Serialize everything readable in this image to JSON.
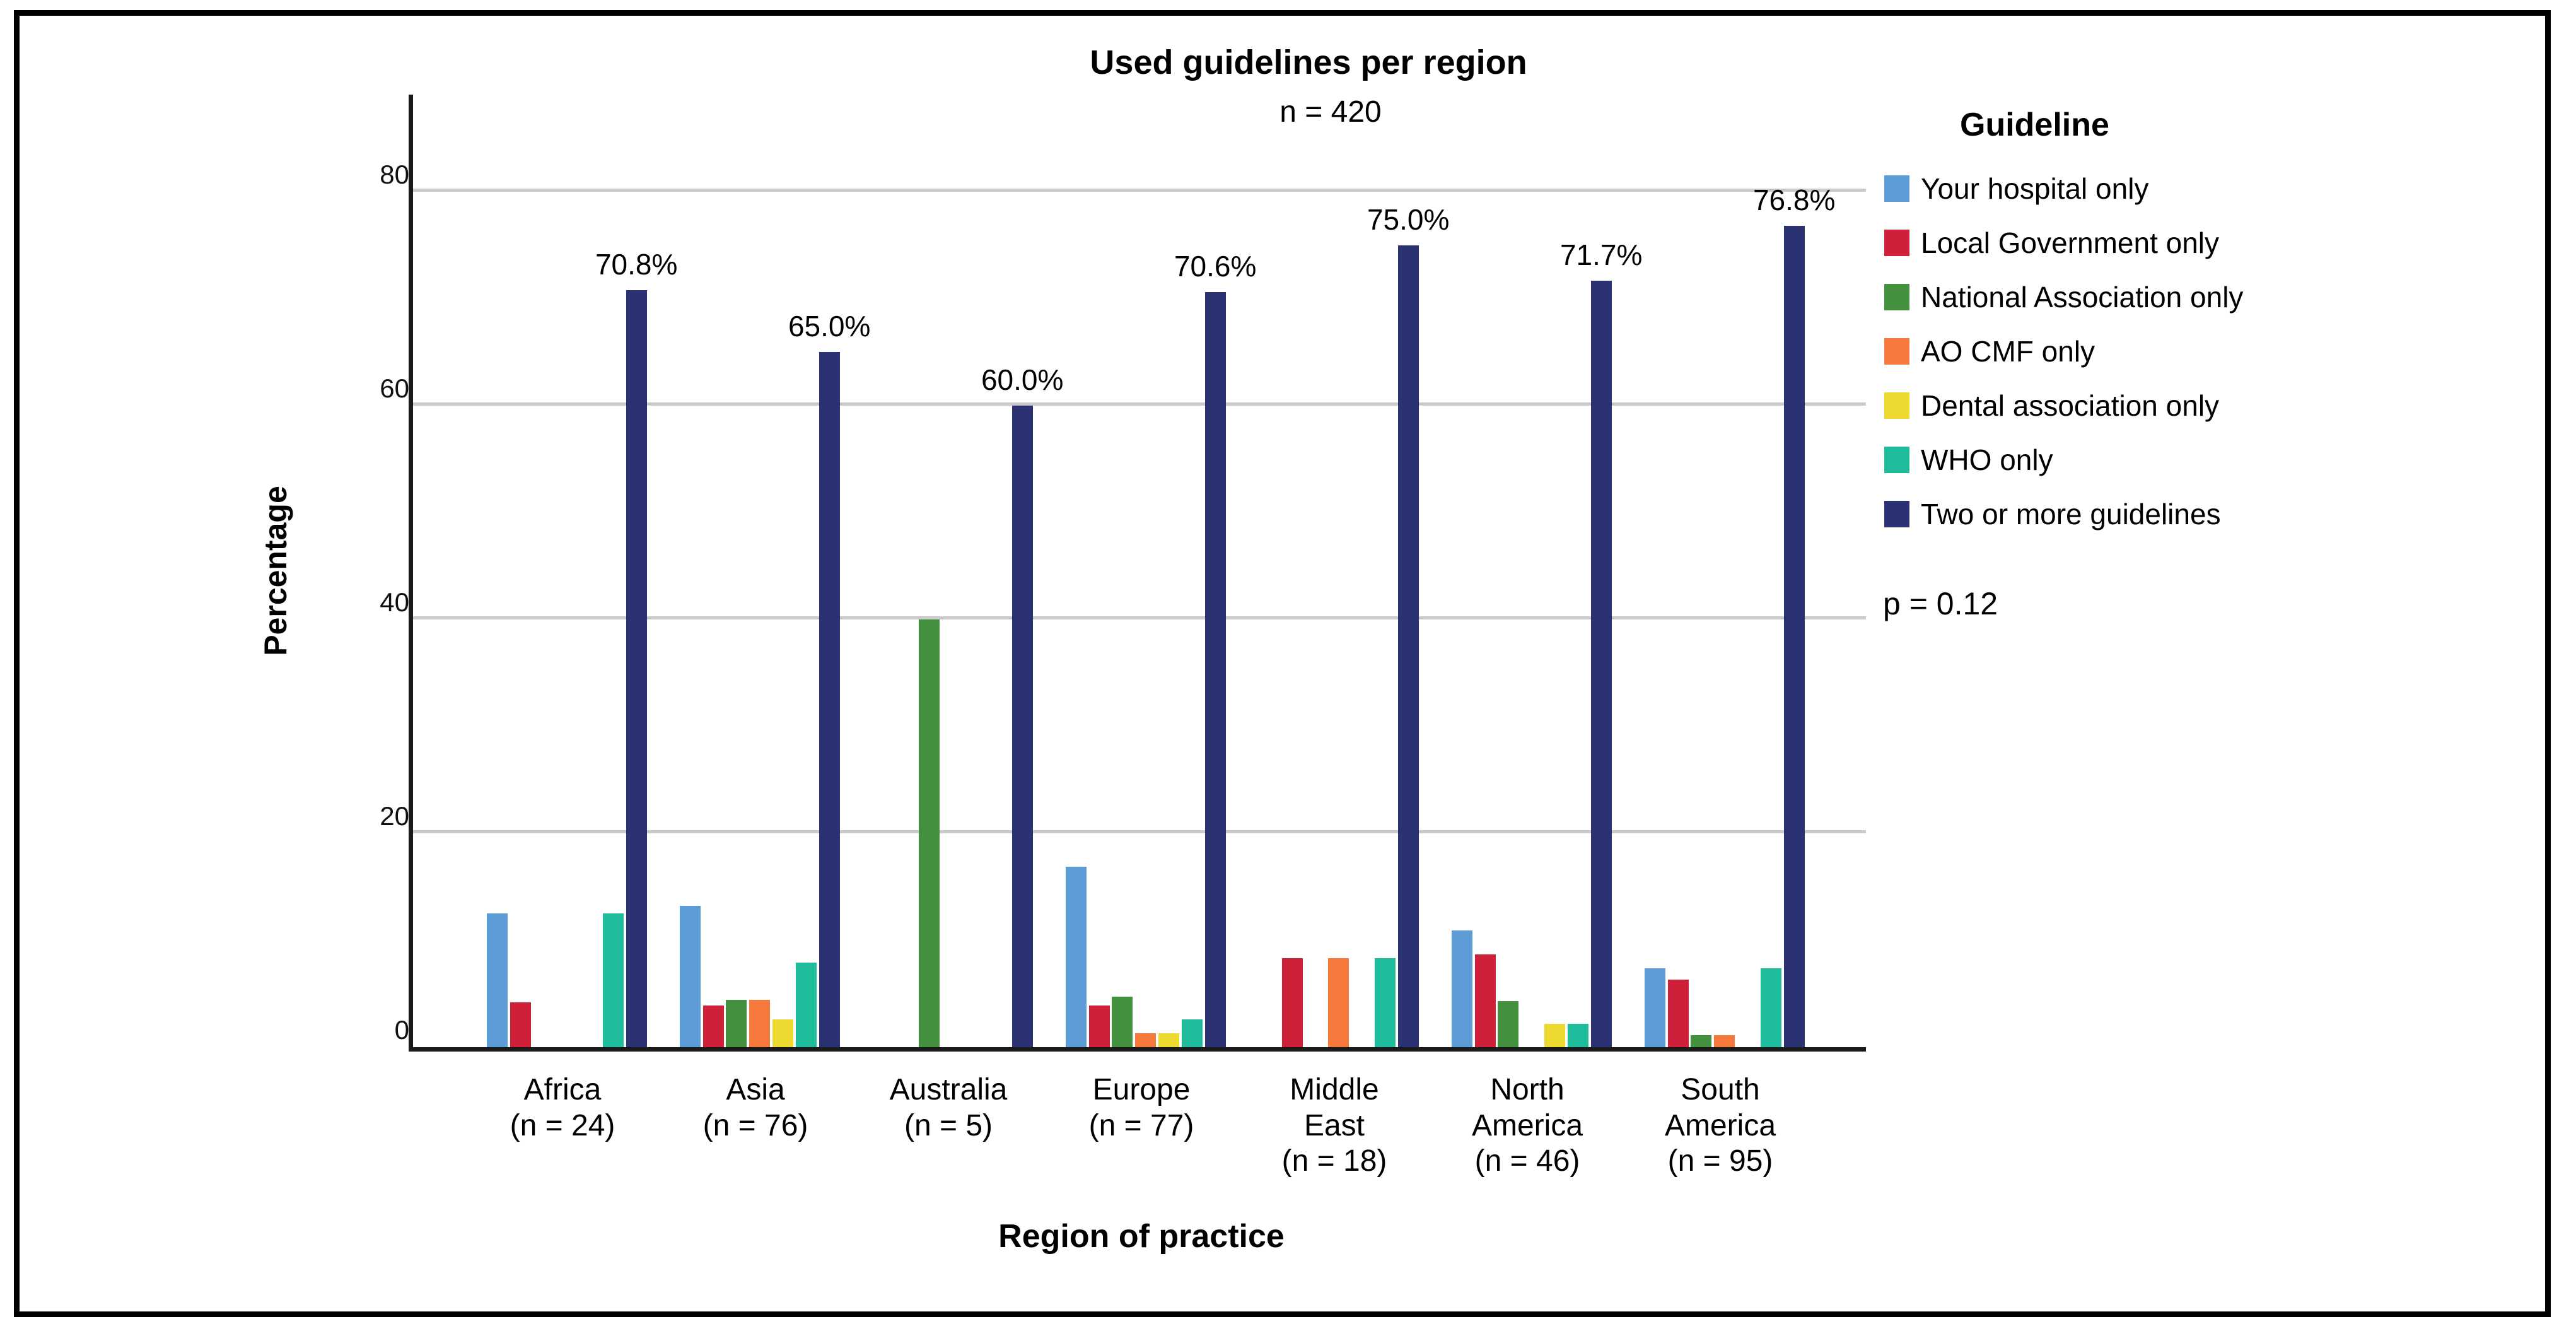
{
  "title": "Used guidelines per region",
  "subtitle": "n = 420",
  "p_value": "p = 0.12",
  "legend": {
    "title": "Guideline",
    "items": [
      {
        "label": "Your hospital only",
        "color": "#5B9CD6"
      },
      {
        "label": "Local Government only",
        "color": "#CE2139"
      },
      {
        "label": "National Association only",
        "color": "#43913F"
      },
      {
        "label": "AO CMF only",
        "color": "#F4793B"
      },
      {
        "label": "Dental association only",
        "color": "#EDD92F"
      },
      {
        "label": "WHO only",
        "color": "#1FBC9C"
      },
      {
        "label": "Two or more guidelines",
        "color": "#2B3272"
      }
    ]
  },
  "axes": {
    "y_label": "Percentage",
    "x_label": "Region of practice",
    "y_ticks": [
      0,
      20,
      40,
      60,
      80
    ],
    "gridlines_at": [
      20,
      40,
      60,
      80
    ]
  },
  "chart_data": {
    "type": "bar",
    "title": "Used guidelines per region",
    "subtitle": "n = 420",
    "xlabel": "Region of practice",
    "ylabel": "Percentage",
    "ylim": [
      0,
      89
    ],
    "grid": true,
    "legend_position": "right",
    "categories": [
      "Africa",
      "Asia",
      "Australia",
      "Europe",
      "Middle East",
      "North America",
      "South America"
    ],
    "category_n": [
      24,
      76,
      5,
      77,
      18,
      46,
      95
    ],
    "category_display_lines": [
      "Africa\n(n = 24)",
      "Asia\n(n = 76)",
      "Australia\n(n = 5)",
      "Europe\n(n = 77)",
      "Middle\nEast\n(n = 18)",
      "North\nAmerica\n(n = 46)",
      "South\nAmerica\n(n = 95)"
    ],
    "series": [
      {
        "name": "Your hospital only",
        "color": "#5B9CD6",
        "values": [
          12.5,
          13.2,
          0,
          16.9,
          0,
          10.9,
          7.4
        ]
      },
      {
        "name": "Local Government only",
        "color": "#CE2139",
        "values": [
          4.2,
          3.9,
          0,
          3.9,
          8.3,
          8.7,
          6.3
        ]
      },
      {
        "name": "National Association only",
        "color": "#43913F",
        "values": [
          0,
          4.4,
          40.0,
          4.7,
          0,
          4.3,
          1.1
        ]
      },
      {
        "name": "AO CMF only",
        "color": "#F4793B",
        "values": [
          0,
          4.4,
          0,
          1.3,
          8.3,
          0,
          1.1
        ]
      },
      {
        "name": "Dental association only",
        "color": "#EDD92F",
        "values": [
          0,
          2.6,
          0,
          1.3,
          0,
          2.2,
          0
        ]
      },
      {
        "name": "WHO only",
        "color": "#1FBC9C",
        "values": [
          12.5,
          7.9,
          0,
          2.6,
          8.3,
          2.2,
          7.4
        ]
      },
      {
        "name": "Two or more guidelines",
        "color": "#2B3272",
        "values": [
          70.8,
          65.0,
          60.0,
          70.6,
          75.0,
          71.7,
          76.8
        ]
      }
    ],
    "bar_labels": {
      "series": "Two or more guidelines",
      "values": [
        "70.8%",
        "65.0%",
        "60.0%",
        "70.6%",
        "75.0%",
        "71.7%",
        "76.8%"
      ]
    },
    "annotations": [
      "p = 0.12"
    ]
  }
}
